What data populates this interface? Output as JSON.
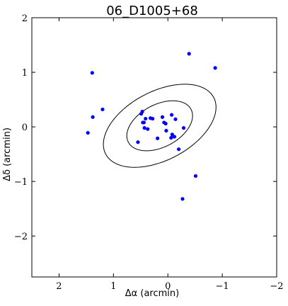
{
  "chart_data": {
    "type": "scatter",
    "title": "06_D1005+68",
    "xlabel": "Δα (arcmin)",
    "ylabel": "Δδ (arcmin)",
    "xlim": [
      2.5,
      -2
    ],
    "ylim": [
      -2.75,
      2
    ],
    "x_inverted": true,
    "xticks": [
      2,
      1,
      0,
      -1,
      -2
    ],
    "yticks": [
      -2,
      -1,
      0,
      1,
      2
    ],
    "xtick_labels": [
      "2",
      "1",
      "0",
      "−1",
      "−2"
    ],
    "ytick_labels": [
      "−2",
      "−1",
      "0",
      "1",
      "2"
    ],
    "grid": false,
    "colors": {
      "points": "#0000ff",
      "ellipses": "#000000",
      "axes": "#000000"
    },
    "series": [
      {
        "x": [
          1.39,
          1.47,
          1.38,
          1.2,
          -0.39,
          -0.87,
          0.49,
          0.47,
          0.41,
          0.46,
          0.44,
          0.43,
          0.37,
          0.32,
          0.28,
          0.1,
          0.07,
          0.04,
          0.03,
          -0.07,
          -0.14,
          -0.29,
          -0.08,
          -0.12,
          -0.06,
          -0.2,
          0.19,
          -0.51,
          -0.27,
          0.55
        ],
        "y": [
          0.99,
          -0.11,
          0.18,
          0.32,
          1.34,
          1.08,
          0.24,
          0.28,
          0.15,
          0.08,
          0.08,
          -0.02,
          -0.04,
          0.16,
          0.15,
          0.18,
          0.08,
          0.06,
          -0.07,
          0.22,
          0.14,
          -0.02,
          -0.14,
          -0.18,
          -0.2,
          -0.41,
          -0.21,
          -0.9,
          -1.32,
          -0.28
        ]
      }
    ],
    "ellipses": [
      {
        "center": [
          0.15,
          0.02
        ],
        "semi_major": 0.65,
        "semi_minor": 0.39,
        "angle_deg": 152.5
      },
      {
        "center": [
          0.15,
          0.02
        ],
        "semi_major": 1.12,
        "semi_minor": 0.63,
        "angle_deg": 152.5
      }
    ]
  }
}
